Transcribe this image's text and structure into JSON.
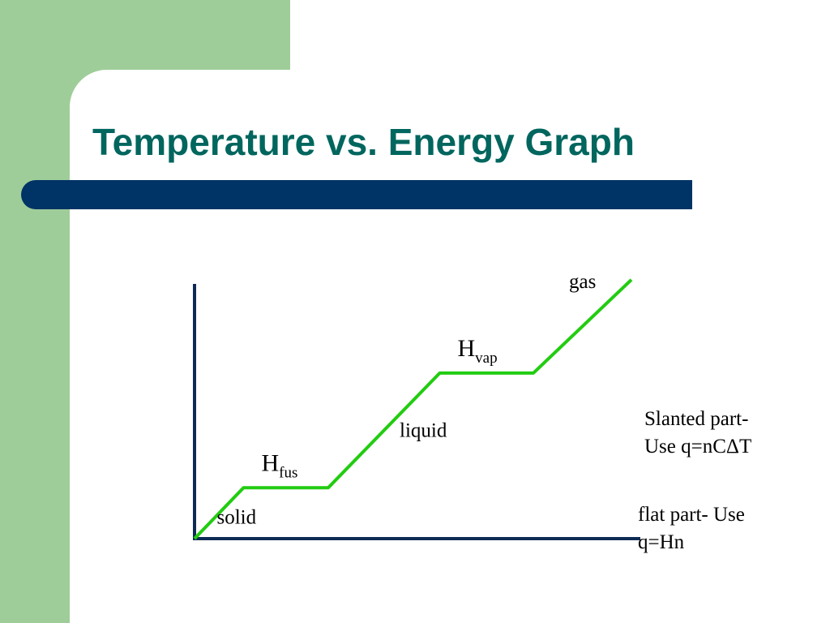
{
  "slide": {
    "title": "Temperature vs. Energy Graph",
    "notes": [
      {
        "lines": [
          "Slanted part-",
          "Use q=nCΔT"
        ]
      },
      {
        "lines": [
          "flat part- Use",
          "q=Hn"
        ]
      }
    ]
  },
  "colors": {
    "background_green": "#9fcd99",
    "bar_navy": "#003366",
    "title_teal": "#00665e",
    "curve_green": "#22cc11",
    "axis_navy": "#0d2b55"
  },
  "chart_data": {
    "type": "line",
    "title": "Temperature vs. Energy Graph",
    "xlabel": "",
    "ylabel": "",
    "xlim": [
      0,
      10
    ],
    "ylim": [
      0,
      6
    ],
    "grid": false,
    "legend": "none",
    "series": [
      {
        "x": [
          0,
          1.1,
          3.0,
          5.5,
          7.6,
          9.8
        ],
        "y": [
          0,
          1.2,
          1.2,
          3.9,
          3.9,
          6.1
        ]
      }
    ],
    "annotations": [
      {
        "text": "solid",
        "x": 0.5,
        "y": 0.35
      },
      {
        "text": "H",
        "sub": "fus",
        "x": 1.5,
        "y": 1.6
      },
      {
        "text": "liquid",
        "x": 4.6,
        "y": 2.4
      },
      {
        "text": "H",
        "sub": "vap",
        "x": 5.9,
        "y": 4.3
      },
      {
        "text": "gas",
        "x": 8.4,
        "y": 5.9
      }
    ]
  }
}
